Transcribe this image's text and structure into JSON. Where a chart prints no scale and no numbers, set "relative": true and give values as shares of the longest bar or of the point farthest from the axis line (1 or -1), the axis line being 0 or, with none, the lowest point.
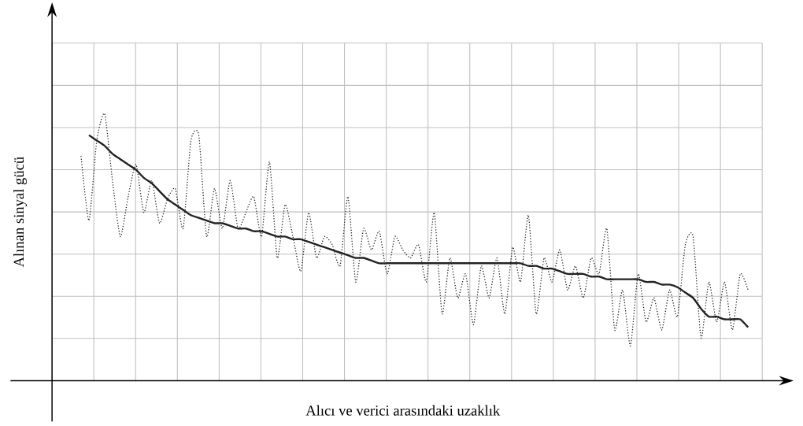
{
  "chart_data": {
    "type": "line",
    "relative": true,
    "grid": true,
    "marker": "none",
    "xlabel": "Alıcı ve verici arasındaki uzaklık",
    "ylabel": "Alınan sinyal gücü",
    "categories": [
      null,
      null,
      null,
      null,
      null,
      null,
      null,
      null,
      null,
      null,
      null,
      null,
      null,
      null,
      null,
      null,
      null,
      null,
      null,
      null,
      null,
      null,
      null,
      null,
      null,
      null,
      null,
      null,
      null,
      null,
      null,
      null,
      null,
      null,
      null,
      null,
      null,
      null,
      null,
      null,
      null,
      null,
      null,
      null,
      null,
      null,
      null,
      null,
      null,
      null,
      null,
      null,
      null,
      null,
      null,
      null,
      null,
      null,
      null,
      null,
      null,
      null,
      null,
      null,
      null,
      null,
      null,
      null,
      null,
      null,
      null,
      null,
      null,
      null,
      null,
      null,
      null,
      null,
      null,
      null,
      null,
      null,
      null,
      null,
      null,
      null
    ],
    "series": [
      {
        "color": "#222222",
        "line_style": "dotted",
        "values": [
          0.84,
          0.6,
          0.9,
          1,
          0.75,
          0.54,
          0.69,
          0.81,
          0.63,
          0.75,
          0.59,
          0.68,
          0.72,
          0.57,
          0.9,
          0.92,
          0.54,
          0.72,
          0.57,
          0.75,
          0.57,
          0.63,
          0.69,
          0.54,
          0.82,
          0.46,
          0.66,
          0.54,
          0.41,
          0.63,
          0.46,
          0.54,
          0.51,
          0.43,
          0.69,
          0.37,
          0.57,
          0.49,
          0.56,
          0.4,
          0.54,
          0.49,
          0.46,
          0.51,
          0.37,
          0.63,
          0.25,
          0.46,
          0.31,
          0.4,
          0.21,
          0.43,
          0.31,
          0.46,
          0.25,
          0.5,
          0.37,
          0.62,
          0.25,
          0.46,
          0.37,
          0.49,
          0.34,
          0.43,
          0.31,
          0.46,
          0.4,
          0.57,
          0.19,
          0.34,
          0.13,
          0.4,
          0.22,
          0.31,
          0.19,
          0.34,
          0.24,
          0.51,
          0.54,
          0.16,
          0.37,
          0.22,
          0.37,
          0.19,
          0.4,
          0.34
        ]
      },
      {
        "color": "#222222",
        "line_style": "solid",
        "values": [
          null,
          0.92,
          0.9,
          0.88,
          0.85,
          0.83,
          0.81,
          0.79,
          0.76,
          0.74,
          0.71,
          0.68,
          0.66,
          0.64,
          0.62,
          0.61,
          0.6,
          0.59,
          0.59,
          0.58,
          0.57,
          0.57,
          0.56,
          0.56,
          0.55,
          0.54,
          0.54,
          0.53,
          0.53,
          0.52,
          0.51,
          0.5,
          0.49,
          0.48,
          0.47,
          0.46,
          0.46,
          0.45,
          0.44,
          0.44,
          0.44,
          0.44,
          0.44,
          0.44,
          0.44,
          0.44,
          0.44,
          0.44,
          0.44,
          0.44,
          0.44,
          0.44,
          0.44,
          0.44,
          0.44,
          0.44,
          0.44,
          0.43,
          0.43,
          0.42,
          0.42,
          0.41,
          0.4,
          0.4,
          0.4,
          0.39,
          0.39,
          0.38,
          0.38,
          0.38,
          0.38,
          0.38,
          0.37,
          0.37,
          0.36,
          0.36,
          0.35,
          0.33,
          0.31,
          0.27,
          0.24,
          0.24,
          0.23,
          0.23,
          0.23,
          0.2
        ]
      }
    ]
  }
}
